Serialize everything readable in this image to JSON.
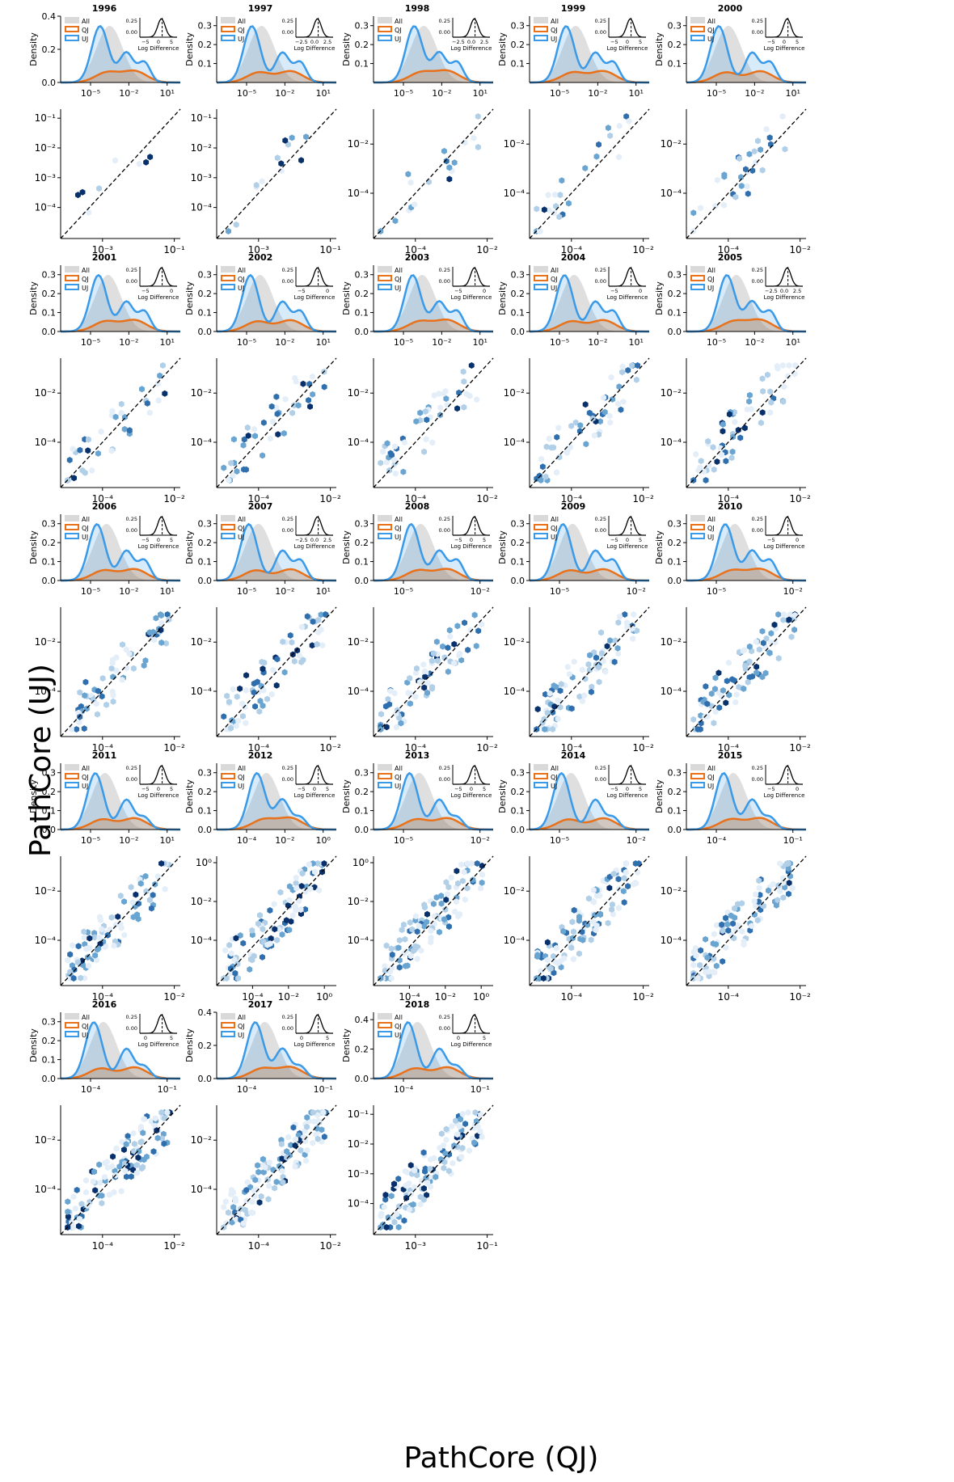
{
  "figure": {
    "ylabel": "PathCore (UJ)",
    "xlabel": "PathCore (QJ)"
  },
  "legend_labels": [
    "All",
    "QJ",
    "UJ"
  ],
  "density_ylabel": "Density",
  "inset_xlabel": "Log Difference",
  "colors": {
    "all": "#d9d9d9",
    "qj": "#e8711a",
    "uj": "#3a9ae8",
    "hex_dark": "#08306b"
  },
  "chart_data": [
    {
      "type": "area",
      "year": "1996",
      "ylim": [
        0,
        0.4
      ],
      "yticks": [
        "0.0",
        "0.2",
        "0.4"
      ],
      "xticks": [
        "10⁻⁵",
        "10⁻²",
        "10¹"
      ],
      "inset_xticks": [
        "−5",
        "0",
        "5"
      ],
      "inset_yticks": [
        "0.25",
        "0.00"
      ],
      "hex_xticks": [
        "10⁻³",
        "10⁻¹"
      ],
      "hex_yticks": [
        "10⁻¹",
        "10⁻²",
        "10⁻³",
        "10⁻⁴"
      ]
    },
    {
      "type": "area",
      "year": "1997",
      "ylim": [
        0,
        0.35
      ],
      "yticks": [
        "0.1",
        "0.2",
        "0.3"
      ],
      "xticks": [
        "10⁻⁵",
        "10⁻²",
        "10¹"
      ],
      "inset_xticks": [
        "−2.5",
        "0.0",
        "2.5"
      ],
      "inset_yticks": [
        "0.25",
        "0.00"
      ],
      "hex_xticks": [
        "10⁻³",
        "10⁻¹"
      ],
      "hex_yticks": [
        "10⁻¹",
        "10⁻²",
        "10⁻³",
        "10⁻⁴"
      ]
    },
    {
      "type": "area",
      "year": "1998",
      "ylim": [
        0,
        0.35
      ],
      "yticks": [
        "0.1",
        "0.2",
        "0.3"
      ],
      "xticks": [
        "10⁻⁵",
        "10⁻²",
        "10¹"
      ],
      "inset_xticks": [
        "−2.5",
        "0.0",
        "2.5"
      ],
      "inset_yticks": [
        "0.25",
        "0.00"
      ],
      "hex_xticks": [
        "10⁻⁴",
        "10⁻²"
      ],
      "hex_yticks": [
        "10⁻²",
        "10⁻⁴"
      ]
    },
    {
      "type": "area",
      "year": "1999",
      "ylim": [
        0,
        0.35
      ],
      "yticks": [
        "0.1",
        "0.2",
        "0.3"
      ],
      "xticks": [
        "10⁻⁵",
        "10⁻²",
        "10¹"
      ],
      "inset_xticks": [
        "−5",
        "0",
        "5"
      ],
      "inset_yticks": [
        "0.25",
        "0.00"
      ],
      "hex_xticks": [
        "10⁻⁴",
        "10⁻²"
      ],
      "hex_yticks": [
        "10⁻²",
        "10⁻⁴"
      ]
    },
    {
      "type": "area",
      "year": "2000",
      "ylim": [
        0,
        0.35
      ],
      "yticks": [
        "0.1",
        "0.2",
        "0.3"
      ],
      "xticks": [
        "10⁻⁵",
        "10⁻²",
        "10¹"
      ],
      "inset_xticks": [
        "−5",
        "0",
        "5"
      ],
      "inset_yticks": [
        "0.25",
        "0.00"
      ],
      "hex_xticks": [
        "10⁻⁴",
        "10⁻²"
      ],
      "hex_yticks": [
        "10⁻²",
        "10⁻⁴"
      ]
    },
    {
      "type": "area",
      "year": "2001",
      "ylim": [
        0,
        0.35
      ],
      "yticks": [
        "0.0",
        "0.1",
        "0.2",
        "0.3"
      ],
      "xticks": [
        "10⁻⁵",
        "10⁻²",
        "10¹"
      ],
      "inset_xticks": [
        "−5",
        "0"
      ],
      "inset_yticks": [
        "0.25",
        "0.00"
      ],
      "hex_xticks": [
        "10⁻⁴",
        "10⁻²"
      ],
      "hex_yticks": [
        "10⁻²",
        "10⁻⁴"
      ]
    },
    {
      "type": "area",
      "year": "2002",
      "ylim": [
        0,
        0.35
      ],
      "yticks": [
        "0.0",
        "0.1",
        "0.2",
        "0.3"
      ],
      "xticks": [
        "10⁻⁵",
        "10⁻²",
        "10¹"
      ],
      "inset_xticks": [
        "−5",
        "0"
      ],
      "inset_yticks": [
        "0.25",
        "0.00"
      ],
      "hex_xticks": [
        "10⁻⁴",
        "10⁻²"
      ],
      "hex_yticks": [
        "10⁻²",
        "10⁻⁴"
      ]
    },
    {
      "type": "area",
      "year": "2003",
      "ylim": [
        0,
        0.35
      ],
      "yticks": [
        "0.0",
        "0.1",
        "0.2",
        "0.3"
      ],
      "xticks": [
        "10⁻⁵",
        "10⁻²",
        "10¹"
      ],
      "inset_xticks": [
        "−5",
        "0"
      ],
      "inset_yticks": [
        "0.25",
        "0.00"
      ],
      "hex_xticks": [
        "10⁻⁴",
        "10⁻²"
      ],
      "hex_yticks": [
        "10⁻²",
        "10⁻⁴"
      ]
    },
    {
      "type": "area",
      "year": "2004",
      "ylim": [
        0,
        0.35
      ],
      "yticks": [
        "0.0",
        "0.1",
        "0.2",
        "0.3"
      ],
      "xticks": [
        "10⁻⁵",
        "10⁻²",
        "10¹"
      ],
      "inset_xticks": [
        "−5",
        "0"
      ],
      "inset_yticks": [
        "0.25",
        "0.00"
      ],
      "hex_xticks": [
        "10⁻⁴",
        "10⁻²"
      ],
      "hex_yticks": [
        "10⁻²",
        "10⁻⁴"
      ]
    },
    {
      "type": "area",
      "year": "2005",
      "ylim": [
        0,
        0.35
      ],
      "yticks": [
        "0.0",
        "0.1",
        "0.2",
        "0.3"
      ],
      "xticks": [
        "10⁻⁵",
        "10⁻²",
        "10¹"
      ],
      "inset_xticks": [
        "−2.5",
        "0.0",
        "2.5"
      ],
      "inset_yticks": [
        "0.25",
        "0.00"
      ],
      "hex_xticks": [
        "10⁻⁴",
        "10⁻²"
      ],
      "hex_yticks": [
        "10⁻²",
        "10⁻⁴"
      ]
    },
    {
      "type": "area",
      "year": "2006",
      "ylim": [
        0,
        0.35
      ],
      "yticks": [
        "0.0",
        "0.1",
        "0.2",
        "0.3"
      ],
      "xticks": [
        "10⁻⁵",
        "10⁻²",
        "10¹"
      ],
      "inset_xticks": [
        "−5",
        "0",
        "5"
      ],
      "inset_yticks": [
        "0.25",
        "0.00"
      ],
      "hex_xticks": [
        "10⁻⁴",
        "10⁻²"
      ],
      "hex_yticks": [
        "10⁻²",
        "10⁻⁴"
      ]
    },
    {
      "type": "area",
      "year": "2007",
      "ylim": [
        0,
        0.35
      ],
      "yticks": [
        "0.0",
        "0.1",
        "0.2",
        "0.3"
      ],
      "xticks": [
        "10⁻⁵",
        "10⁻²",
        "10¹"
      ],
      "inset_xticks": [
        "−2.5",
        "0.0",
        "2.5"
      ],
      "inset_yticks": [
        "0.25",
        "0.00"
      ],
      "hex_xticks": [
        "10⁻⁴",
        "10⁻²"
      ],
      "hex_yticks": [
        "10⁻²",
        "10⁻⁴"
      ]
    },
    {
      "type": "area",
      "year": "2008",
      "ylim": [
        0,
        0.35
      ],
      "yticks": [
        "0.0",
        "0.1",
        "0.2",
        "0.3"
      ],
      "xticks": [
        "10⁻⁵",
        "10⁻²"
      ],
      "inset_xticks": [
        "−5",
        "0",
        "5"
      ],
      "inset_yticks": [
        "0.25",
        "0.00"
      ],
      "hex_xticks": [
        "10⁻⁴",
        "10⁻²"
      ],
      "hex_yticks": [
        "10⁻²",
        "10⁻⁴"
      ]
    },
    {
      "type": "area",
      "year": "2009",
      "ylim": [
        0,
        0.35
      ],
      "yticks": [
        "0.0",
        "0.1",
        "0.2",
        "0.3"
      ],
      "xticks": [
        "10⁻⁵",
        "10⁻²"
      ],
      "inset_xticks": [
        "−5",
        "0",
        "5"
      ],
      "inset_yticks": [
        "0.25",
        "0.00"
      ],
      "hex_xticks": [
        "10⁻⁴",
        "10⁻²"
      ],
      "hex_yticks": [
        "10⁻²",
        "10⁻⁴"
      ]
    },
    {
      "type": "area",
      "year": "2010",
      "ylim": [
        0,
        0.35
      ],
      "yticks": [
        "0.0",
        "0.1",
        "0.2",
        "0.3"
      ],
      "xticks": [
        "10⁻⁵",
        "10⁻²"
      ],
      "inset_xticks": [
        "−5",
        "0"
      ],
      "inset_yticks": [
        "0.25",
        "0.00"
      ],
      "hex_xticks": [
        "10⁻⁴",
        "10⁻²"
      ],
      "hex_yticks": [
        "10⁻²",
        "10⁻⁴"
      ]
    },
    {
      "type": "area",
      "year": "2011",
      "ylim": [
        0,
        0.35
      ],
      "yticks": [
        "0.0",
        "0.1",
        "0.2",
        "0.3"
      ],
      "xticks": [
        "10⁻⁵",
        "10⁻²",
        "10¹"
      ],
      "inset_xticks": [
        "−5",
        "0",
        "5"
      ],
      "inset_yticks": [
        "0.25",
        "0.00"
      ],
      "hex_xticks": [
        "10⁻⁴",
        "10⁻²"
      ],
      "hex_yticks": [
        "10⁻²",
        "10⁻⁴"
      ]
    },
    {
      "type": "area",
      "year": "2012",
      "ylim": [
        0,
        0.35
      ],
      "yticks": [
        "0.0",
        "0.1",
        "0.2",
        "0.3"
      ],
      "xticks": [
        "10⁻⁴",
        "10⁻²",
        "10⁰"
      ],
      "inset_xticks": [
        "−5",
        "0",
        "5"
      ],
      "inset_yticks": [
        "0.25",
        "0.00"
      ],
      "hex_xticks": [
        "10⁻⁴",
        "10⁻²",
        "10⁰"
      ],
      "hex_yticks": [
        "10⁰",
        "10⁻²",
        "10⁻⁴"
      ]
    },
    {
      "type": "area",
      "year": "2013",
      "ylim": [
        0,
        0.35
      ],
      "yticks": [
        "0.0",
        "0.1",
        "0.2",
        "0.3"
      ],
      "xticks": [
        "10⁻⁵",
        "10⁻²"
      ],
      "inset_xticks": [
        "−5",
        "0",
        "5"
      ],
      "inset_yticks": [
        "0.25",
        "0.00"
      ],
      "hex_xticks": [
        "10⁻⁴",
        "10⁻²",
        "10⁰"
      ],
      "hex_yticks": [
        "10⁰",
        "10⁻²",
        "10⁻⁴"
      ]
    },
    {
      "type": "area",
      "year": "2014",
      "ylim": [
        0,
        0.35
      ],
      "yticks": [
        "0.0",
        "0.1",
        "0.2",
        "0.3"
      ],
      "xticks": [
        "10⁻⁵",
        "10⁻²"
      ],
      "inset_xticks": [
        "−5",
        "0",
        "5"
      ],
      "inset_yticks": [
        "0.25",
        "0.00"
      ],
      "hex_xticks": [
        "10⁻⁴",
        "10⁻²"
      ],
      "hex_yticks": [
        "10⁻²",
        "10⁻⁴"
      ]
    },
    {
      "type": "area",
      "year": "2015",
      "ylim": [
        0,
        0.35
      ],
      "yticks": [
        "0.0",
        "0.1",
        "0.2",
        "0.3"
      ],
      "xticks": [
        "10⁻⁴",
        "10⁻¹"
      ],
      "inset_xticks": [
        "−5",
        "0"
      ],
      "inset_yticks": [
        "0.25",
        "0.00"
      ],
      "hex_xticks": [
        "10⁻⁴",
        "10⁻²"
      ],
      "hex_yticks": [
        "10⁻²",
        "10⁻⁴"
      ]
    },
    {
      "type": "area",
      "year": "2016",
      "ylim": [
        0,
        0.35
      ],
      "yticks": [
        "0.0",
        "0.1",
        "0.2",
        "0.3"
      ],
      "xticks": [
        "10⁻⁴",
        "10⁻¹"
      ],
      "inset_xticks": [
        "0",
        "5"
      ],
      "inset_yticks": [
        "0.25",
        "0.00"
      ],
      "hex_xticks": [
        "10⁻⁴",
        "10⁻²"
      ],
      "hex_yticks": [
        "10⁻²",
        "10⁻⁴"
      ]
    },
    {
      "type": "area",
      "year": "2017",
      "ylim": [
        0,
        0.4
      ],
      "yticks": [
        "0.0",
        "0.2",
        "0.4"
      ],
      "xticks": [
        "10⁻⁴",
        "10⁻¹"
      ],
      "inset_xticks": [
        "0",
        "5"
      ],
      "inset_yticks": [
        "0.25",
        "0.00"
      ],
      "hex_xticks": [
        "10⁻⁴",
        "10⁻²"
      ],
      "hex_yticks": [
        "10⁻²",
        "10⁻⁴"
      ]
    },
    {
      "type": "area",
      "year": "2018",
      "ylim": [
        0,
        0.45
      ],
      "yticks": [
        "0.0",
        "0.2",
        "0.4"
      ],
      "xticks": [
        "10⁻⁴",
        "10⁻¹"
      ],
      "inset_xticks": [
        "0",
        "5"
      ],
      "inset_yticks": [
        "0.25",
        "0.00"
      ],
      "hex_xticks": [
        "10⁻³",
        "10⁻¹"
      ],
      "hex_yticks": [
        "10⁻¹",
        "10⁻²",
        "10⁻³",
        "10⁻⁴"
      ]
    }
  ]
}
